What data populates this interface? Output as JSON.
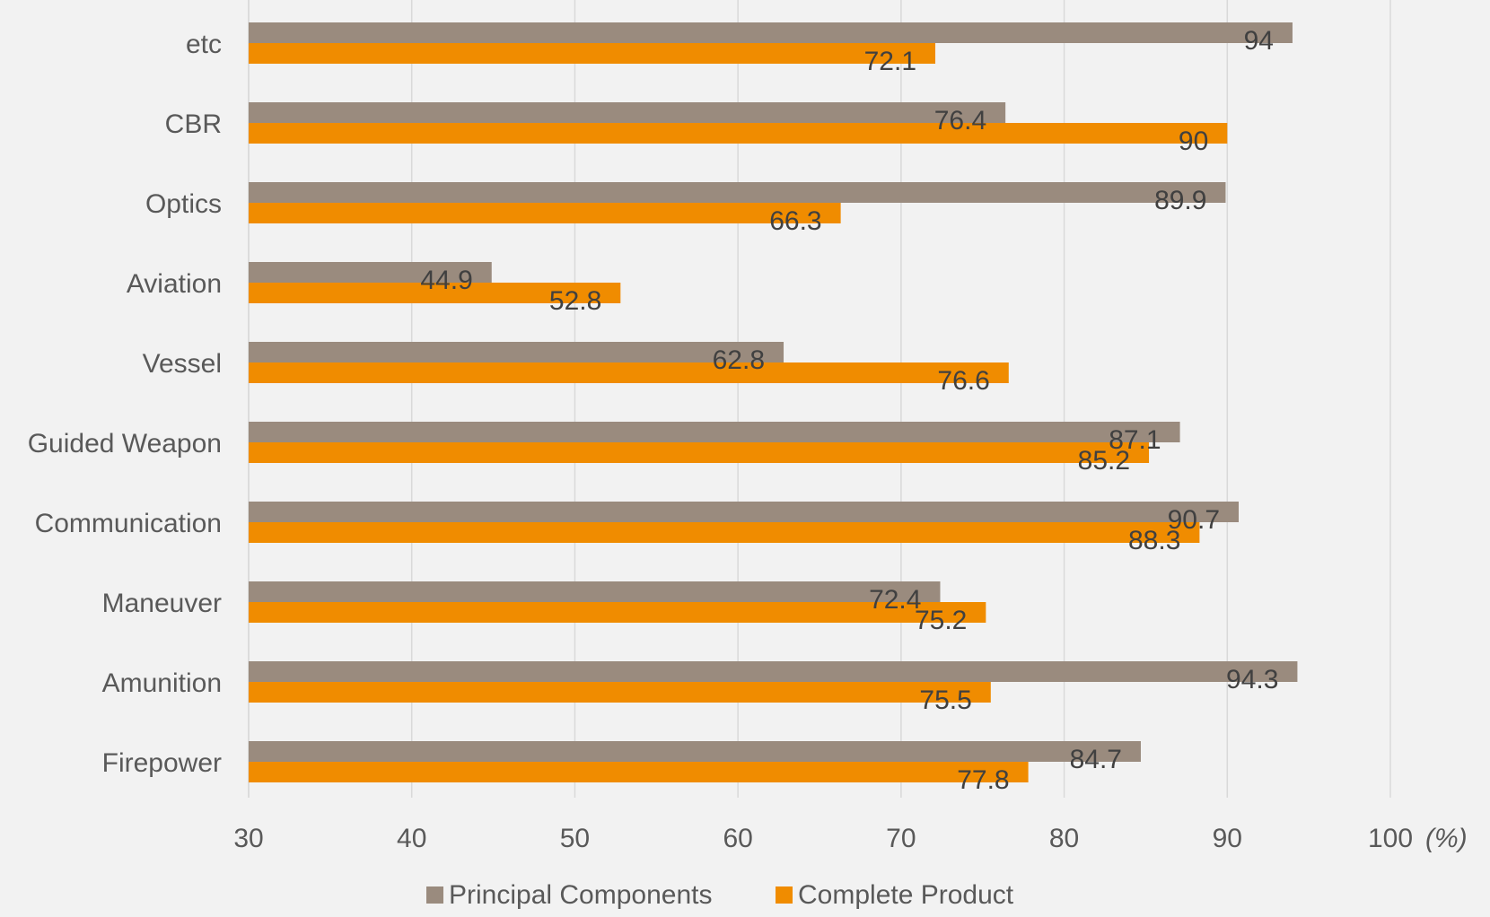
{
  "chart_data": {
    "type": "bar",
    "orientation": "horizontal",
    "categories": [
      "etc",
      "CBR",
      "Optics",
      "Aviation",
      "Vessel",
      "Guided Weapon",
      "Communication",
      "Maneuver",
      "Amunition",
      "Firepower"
    ],
    "series": [
      {
        "name": "Principal Components",
        "color": "#9a8b7e",
        "values": [
          94,
          76.4,
          89.9,
          44.9,
          62.8,
          87.1,
          90.7,
          72.4,
          94.3,
          84.7
        ]
      },
      {
        "name": "Complete Product",
        "color": "#f08c00",
        "values": [
          72.1,
          90,
          66.3,
          52.8,
          76.6,
          85.2,
          88.3,
          75.2,
          75.5,
          77.8
        ]
      }
    ],
    "data_labels": {
      "Principal Components": [
        "94",
        "76.4",
        "89.9",
        "44.9",
        "62.8",
        "87.1",
        "90.7",
        "72.4",
        "94.3",
        "84.7"
      ],
      "Complete Product": [
        "72.1",
        "90",
        "66.3",
        "52.8",
        "76.6",
        "85.2",
        "88.3",
        "75.2",
        "75.5",
        "77.8"
      ]
    },
    "x_ticks": [
      "30",
      "40",
      "50",
      "60",
      "70",
      "80",
      "90",
      "100"
    ],
    "x_unit": "(%)",
    "xlim": [
      30,
      100
    ],
    "title": "",
    "xlabel": "",
    "ylabel": "",
    "grid": "vertical",
    "legend_position": "bottom"
  },
  "colors": {
    "background": "#f2f2f2",
    "grid": "#d9d9d9",
    "text": "#595959",
    "label_text": "#404040"
  }
}
